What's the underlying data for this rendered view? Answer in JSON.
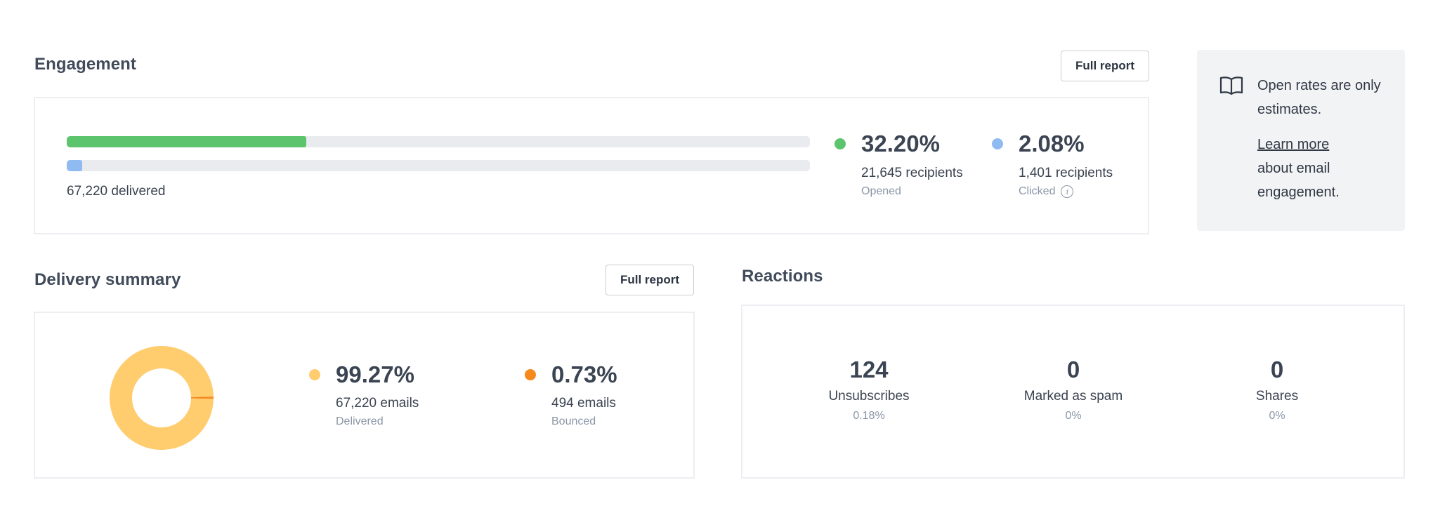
{
  "engagement": {
    "title": "Engagement",
    "full_report_label": "Full report",
    "bars": [
      {
        "name": "opened",
        "fill_percent": 32.2,
        "color": "#5bc46d"
      },
      {
        "name": "clicked",
        "fill_percent": 2.08,
        "color": "#90baf2"
      }
    ],
    "delivered_text": "67,220 delivered",
    "stats": [
      {
        "percent": "32.20%",
        "recipients": "21,645 recipients",
        "label": "Opened",
        "color": "#5bc46d"
      },
      {
        "percent": "2.08%",
        "recipients": "1,401 recipients",
        "label": "Clicked",
        "color": "#90baf2",
        "info_icon": "info-icon"
      }
    ]
  },
  "tip": {
    "icon": "book-icon",
    "text_line": "Open rates are only estimates.",
    "link_label": "Learn more",
    "after_link": "about email engagement."
  },
  "delivery": {
    "title": "Delivery summary",
    "full_report_label": "Full report",
    "donut": [
      {
        "name": "Delivered",
        "value": 99.27,
        "color": "#ffcc6e"
      },
      {
        "name": "Bounced",
        "value": 0.73,
        "color": "#f5891d"
      }
    ],
    "stats": [
      {
        "percent": "99.27%",
        "count": "67,220 emails",
        "label": "Delivered",
        "color": "#ffcc6e"
      },
      {
        "percent": "0.73%",
        "count": "494 emails",
        "label": "Bounced",
        "color": "#f5891d"
      }
    ]
  },
  "reactions": {
    "title": "Reactions",
    "items": [
      {
        "value": "124",
        "label": "Unsubscribes",
        "percent": "0.18%"
      },
      {
        "value": "0",
        "label": "Marked as spam",
        "percent": "0%"
      },
      {
        "value": "0",
        "label": "Shares",
        "percent": "0%"
      }
    ]
  }
}
